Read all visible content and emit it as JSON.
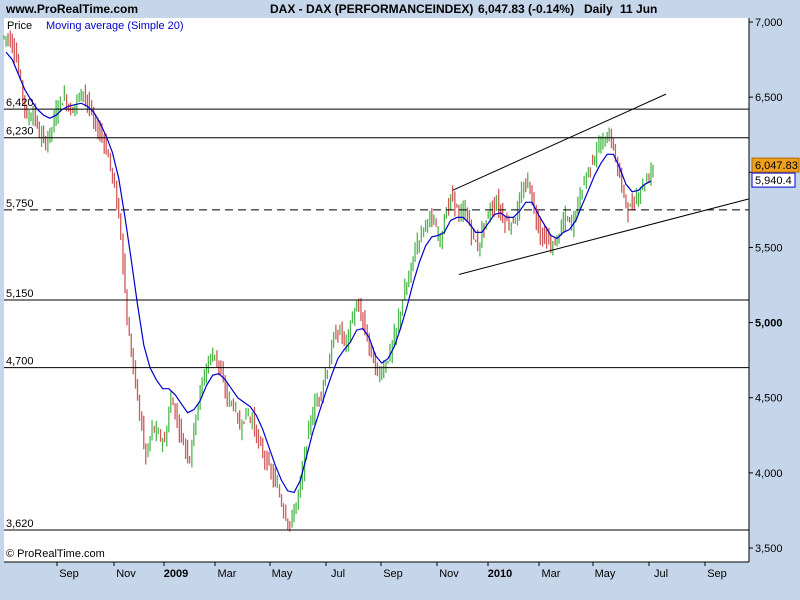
{
  "header": {
    "site": "www.ProRealTime.com",
    "instrument": "DAX - DAX (PERFORMANCEINDEX)",
    "quote": "6,047.83 (-0.14%)",
    "period": "Daily",
    "date": "11 Jun"
  },
  "legend": {
    "price_label": "Price",
    "ma_label": "Moving average (Simple 20)"
  },
  "footer": {
    "copyright": "© ProRealTime.com"
  },
  "colors": {
    "background": "#c6d6ea",
    "plot": "#ffffff",
    "up_candle": "#4fb84f",
    "down_candle": "#d05a5a",
    "moving_average": "#0000cc",
    "last_price_box": "#f0a020"
  },
  "chart_data": {
    "type": "candlestick",
    "x_ticks": [
      {
        "label": "Sep",
        "bold": false
      },
      {
        "label": "Nov",
        "bold": false
      },
      {
        "label": "2009",
        "bold": true
      },
      {
        "label": "Mar",
        "bold": false
      },
      {
        "label": "May",
        "bold": false
      },
      {
        "label": "Jul",
        "bold": false
      },
      {
        "label": "Sep",
        "bold": false
      },
      {
        "label": "Nov",
        "bold": false
      },
      {
        "label": "2010",
        "bold": true
      },
      {
        "label": "Mar",
        "bold": false
      },
      {
        "label": "May",
        "bold": false
      },
      {
        "label": "Jul",
        "bold": false
      },
      {
        "label": "Sep",
        "bold": false
      }
    ],
    "y_ticks": [
      {
        "label": "7,000",
        "value": 7000,
        "bold": false
      },
      {
        "label": "6,500",
        "value": 6500,
        "bold": false
      },
      {
        "label": "6,000",
        "value": 6000,
        "bold": true
      },
      {
        "label": "5,500",
        "value": 5500,
        "bold": false
      },
      {
        "label": "5,000",
        "value": 5000,
        "bold": true
      },
      {
        "label": "4,500",
        "value": 4500,
        "bold": false
      },
      {
        "label": "4,000",
        "value": 4000,
        "bold": false
      },
      {
        "label": "3,500",
        "value": 3500,
        "bold": false
      }
    ],
    "ylim": [
      3500,
      7000
    ],
    "grid": false,
    "horizontal_levels": [
      {
        "label": "6,420",
        "value": 6420,
        "style": "solid"
      },
      {
        "label": "6,230",
        "value": 6230,
        "style": "solid"
      },
      {
        "label": "5,750",
        "value": 5750,
        "style": "dashed"
      },
      {
        "label": "5,150",
        "value": 5150,
        "style": "solid"
      },
      {
        "label": "4,700",
        "value": 4700,
        "style": "solid"
      },
      {
        "label": "3,620",
        "value": 3620,
        "style": "solid"
      }
    ],
    "last_price": {
      "label": "6,047.83",
      "value": 6047.83
    },
    "ma_last": {
      "label": "5,940.4",
      "value": 5940.4
    },
    "closes": [
      6900,
      6820,
      6600,
      6350,
      6400,
      6250,
      6200,
      6300,
      6450,
      6500,
      6400,
      6480,
      6550,
      6420,
      6300,
      6250,
      6100,
      5900,
      5600,
      5000,
      4700,
      4400,
      4100,
      4300,
      4250,
      4200,
      4500,
      4350,
      4200,
      4100,
      4400,
      4600,
      4750,
      4800,
      4650,
      4500,
      4450,
      4300,
      4400,
      4350,
      4200,
      4100,
      4000,
      3900,
      3750,
      3650,
      3800,
      4000,
      4300,
      4450,
      4550,
      4700,
      4900,
      4950,
      4850,
      5050,
      5100,
      4950,
      4800,
      4650,
      4700,
      4800,
      4950,
      5150,
      5300,
      5500,
      5600,
      5700,
      5650,
      5550,
      5750,
      5850,
      5700,
      5750,
      5600,
      5500,
      5650,
      5750,
      5800,
      5700,
      5650,
      5700,
      5850,
      5950,
      5750,
      5600,
      5550,
      5500,
      5600,
      5700,
      5650,
      5800,
      5950,
      6050,
      6150,
      6200,
      6250,
      6100,
      5900,
      5750,
      5800,
      5900,
      5950,
      6047.83
    ],
    "ma": [
      6800,
      6750,
      6650,
      6550,
      6480,
      6420,
      6380,
      6360,
      6380,
      6420,
      6440,
      6450,
      6460,
      6440,
      6400,
      6330,
      6240,
      6130,
      5960,
      5700,
      5420,
      5120,
      4850,
      4700,
      4620,
      4560,
      4560,
      4520,
      4460,
      4400,
      4420,
      4480,
      4580,
      4650,
      4660,
      4620,
      4560,
      4500,
      4470,
      4440,
      4380,
      4290,
      4170,
      4050,
      3950,
      3880,
      3870,
      3950,
      4110,
      4270,
      4400,
      4530,
      4650,
      4760,
      4820,
      4870,
      4950,
      4960,
      4900,
      4780,
      4730,
      4760,
      4840,
      4960,
      5100,
      5260,
      5400,
      5510,
      5570,
      5580,
      5600,
      5680,
      5700,
      5700,
      5660,
      5600,
      5600,
      5660,
      5720,
      5730,
      5700,
      5700,
      5740,
      5800,
      5800,
      5720,
      5650,
      5580,
      5560,
      5600,
      5620,
      5680,
      5780,
      5880,
      5980,
      6060,
      6120,
      6120,
      6030,
      5920,
      5870,
      5880,
      5920,
      5940.4
    ],
    "channel_upper": {
      "from": {
        "index": 71,
        "value": 5880
      },
      "to": {
        "index": 103,
        "value": 6520
      }
    },
    "channel_lower": {
      "from": {
        "index": 72,
        "value": 5320
      },
      "to": {
        "index": 103,
        "value": 5790
      }
    }
  }
}
